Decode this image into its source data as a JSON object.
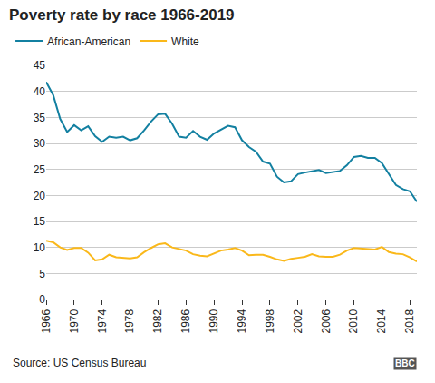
{
  "chart_data": {
    "type": "line",
    "title": "Poverty rate by race 1966-2019",
    "x": [
      1966,
      1967,
      1968,
      1969,
      1970,
      1971,
      1972,
      1973,
      1974,
      1975,
      1976,
      1977,
      1978,
      1979,
      1980,
      1981,
      1982,
      1983,
      1984,
      1985,
      1986,
      1987,
      1988,
      1989,
      1990,
      1991,
      1992,
      1993,
      1994,
      1995,
      1996,
      1997,
      1998,
      1999,
      2000,
      2001,
      2002,
      2003,
      2004,
      2005,
      2006,
      2007,
      2008,
      2009,
      2010,
      2011,
      2012,
      2013,
      2014,
      2015,
      2016,
      2017,
      2018,
      2019
    ],
    "series": [
      {
        "name": "African-American",
        "color": "#1380a1",
        "values": [
          41.8,
          39.3,
          34.7,
          32.2,
          33.5,
          32.5,
          33.3,
          31.4,
          30.3,
          31.3,
          31.1,
          31.3,
          30.6,
          31.0,
          32.5,
          34.2,
          35.6,
          35.7,
          33.8,
          31.3,
          31.1,
          32.4,
          31.3,
          30.7,
          31.9,
          32.7,
          33.4,
          33.1,
          30.6,
          29.3,
          28.4,
          26.5,
          26.1,
          23.6,
          22.5,
          22.7,
          24.1,
          24.4,
          24.7,
          24.9,
          24.3,
          24.5,
          24.7,
          25.8,
          27.4,
          27.6,
          27.2,
          27.2,
          26.2,
          24.1,
          22.0,
          21.2,
          20.8,
          18.8
        ]
      },
      {
        "name": "White",
        "color": "#fab81a",
        "values": [
          11.3,
          11.0,
          10.0,
          9.5,
          9.9,
          9.9,
          9.0,
          7.5,
          7.7,
          8.6,
          8.1,
          8.0,
          7.9,
          8.1,
          9.1,
          9.9,
          10.6,
          10.8,
          10.0,
          9.7,
          9.4,
          8.7,
          8.4,
          8.3,
          8.8,
          9.4,
          9.6,
          9.9,
          9.4,
          8.5,
          8.6,
          8.6,
          8.2,
          7.7,
          7.4,
          7.8,
          8.0,
          8.2,
          8.7,
          8.3,
          8.2,
          8.2,
          8.6,
          9.4,
          9.9,
          9.8,
          9.7,
          9.6,
          10.1,
          9.1,
          8.8,
          8.7,
          8.1,
          7.3
        ]
      }
    ],
    "xlim": [
      1966,
      2019
    ],
    "xticks": [
      1966,
      1970,
      1974,
      1978,
      1982,
      1986,
      1990,
      1994,
      1998,
      2002,
      2006,
      2010,
      2014,
      2018
    ],
    "ylim": [
      0,
      45
    ],
    "yticks": [
      0,
      5,
      10,
      15,
      20,
      25,
      30,
      35,
      40,
      45
    ],
    "grid": true,
    "legend": "top-left",
    "annotations": [
      "Source: US Census Bureau",
      "BBC"
    ]
  }
}
